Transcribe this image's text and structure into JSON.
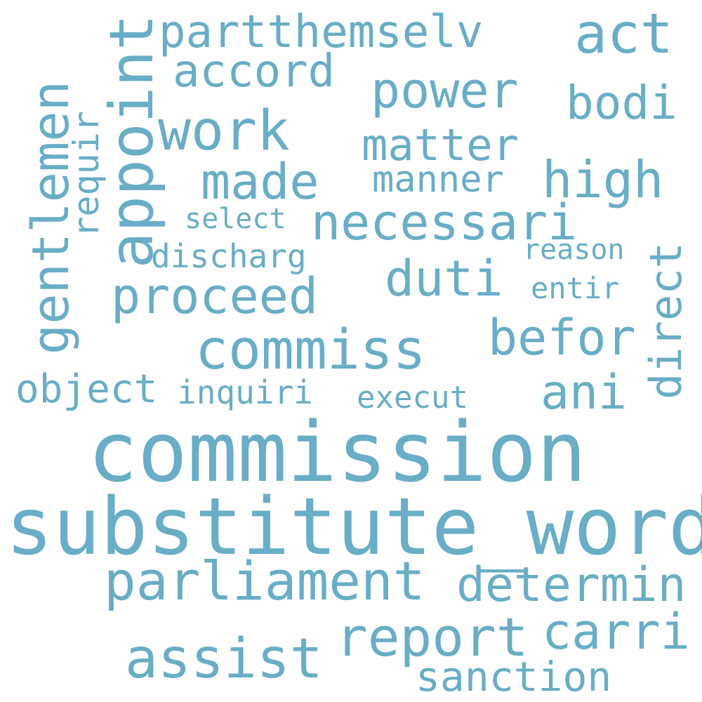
{
  "word_color": "#69ADC6",
  "background": "#ffffff",
  "words": {
    "commission": "commission",
    "substitute_word": "substitute_word",
    "parliament": "parliament",
    "assist": "assist",
    "report": "report",
    "carri": "carri",
    "determin": "determin",
    "sanction": "sanction",
    "commiss": "commiss",
    "befor": "befor",
    "ani": "ani",
    "execut": "execut",
    "inquiri": "inquiri",
    "object": "object",
    "proceed": "proceed",
    "duti": "duti",
    "entir": "entir",
    "reason": "reason",
    "discharg": "discharg",
    "select": "select",
    "necessari": "necessari",
    "made": "made",
    "manner": "manner",
    "high": "high",
    "matter": "matter",
    "work": "work",
    "power": "power",
    "bodi": "bodi",
    "accord": "accord",
    "partthemselv": "partthemselv",
    "act": "act",
    "appoint": "appoint",
    "gentlemen": "gentlemen",
    "requir": "requir",
    "direct": "direct"
  }
}
